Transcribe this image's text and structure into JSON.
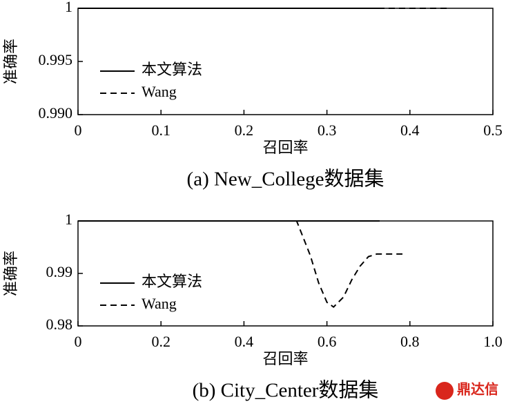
{
  "chart_data": [
    {
      "type": "line",
      "caption": "(a) New_College数据集",
      "x_label": "召回率",
      "y_label": "准确率",
      "xlim": [
        0,
        0.5
      ],
      "xticks": [
        0,
        0.1,
        0.2,
        0.3,
        0.4,
        0.5
      ],
      "ylim": [
        0.99,
        1
      ],
      "yticks": [
        {
          "value": 0.99,
          "label": "0.990"
        },
        0.995,
        1
      ],
      "grid": false,
      "legend": "left",
      "series": [
        {
          "name": "本文算法",
          "color": "#000000",
          "dash": "solid",
          "x": [
            0,
            0.368
          ],
          "values": [
            1,
            1
          ]
        },
        {
          "name": "Wang",
          "color": "#000000",
          "dash": "dashed",
          "x": [
            0,
            0.445
          ],
          "values": [
            1,
            1
          ]
        }
      ]
    },
    {
      "type": "line",
      "caption": "(b) City_Center数据集",
      "x_label": "召回率",
      "y_label": "准确率",
      "xlim": [
        0,
        1
      ],
      "xticks": [
        0,
        0.2,
        0.4,
        0.6,
        0.8,
        {
          "value": 1,
          "label": "1.0"
        }
      ],
      "ylim": [
        0.98,
        1
      ],
      "yticks": [
        0.98,
        0.99,
        1
      ],
      "grid": false,
      "legend": "left",
      "series": [
        {
          "name": "本文算法",
          "color": "#000000",
          "dash": "solid",
          "x": [
            0,
            0.727
          ],
          "values": [
            1,
            1
          ]
        },
        {
          "name": "Wang",
          "color": "#000000",
          "dash": "dashed",
          "x": [
            0,
            0.527,
            0.54,
            0.56,
            0.58,
            0.6,
            0.616,
            0.64,
            0.66,
            0.68,
            0.7,
            0.72,
            0.782
          ],
          "values": [
            1,
            1,
            0.9974,
            0.9934,
            0.9882,
            0.9845,
            0.9836,
            0.9855,
            0.9888,
            0.9914,
            0.9932,
            0.9937,
            0.9937
          ]
        }
      ]
    }
  ],
  "watermark": "鼎达信"
}
